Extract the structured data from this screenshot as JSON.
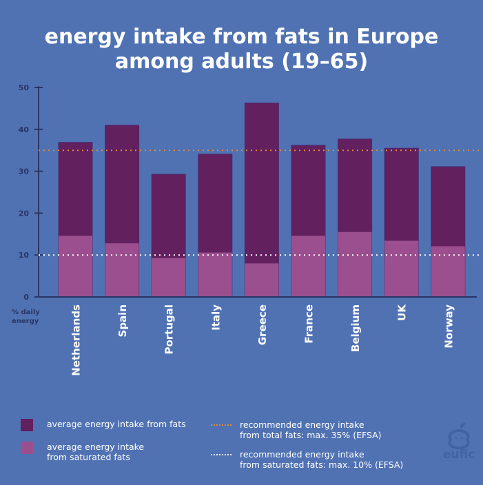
{
  "title": [
    "energy intake from fats in Europe",
    "among adults (19–65)"
  ],
  "colors": {
    "background": "#5072b3",
    "total": "#62205f",
    "saturated": "#9b4f8e",
    "axis": "#2a3566",
    "efsa_total_line": "#e6892f",
    "efsa_sat_line": "#ffffff"
  },
  "chart_data": {
    "type": "bar",
    "stacked": "overlay",
    "title": "energy intake from fats in Europe among adults (19–65)",
    "ylabel": "% daily energy",
    "ylim": [
      0,
      50
    ],
    "yticks": [
      0,
      10,
      20,
      30,
      40,
      50
    ],
    "grid": false,
    "categories": [
      "Netherlands",
      "Spain",
      "Portugal",
      "Italy",
      "Greece",
      "France",
      "Belgium",
      "UK",
      "Norway"
    ],
    "series": [
      {
        "name": "average energy intake from fats",
        "values": [
          36.9,
          41.0,
          29.3,
          34.1,
          46.3,
          36.2,
          37.7,
          35.5,
          31.1
        ]
      },
      {
        "name": "average energy intake from saturated fats",
        "values": [
          14.6,
          12.8,
          9.3,
          10.6,
          8.0,
          14.6,
          15.5,
          13.4,
          12.1
        ]
      }
    ],
    "reference_lines": [
      {
        "name": "recommended energy intake from total fats: max. 35% (EFSA)",
        "value": 35
      },
      {
        "name": "recommended energy intake from saturated fats: max. 10% (EFSA)",
        "value": 10
      }
    ]
  },
  "legend": {
    "total": "average energy intake from fats",
    "saturated": [
      "average energy intake",
      "from saturated fats"
    ],
    "efsa_total": [
      "recommended energy intake",
      "from total fats: max. 35% (EFSA)"
    ],
    "efsa_sat": [
      "recommended energy intake",
      "from saturated fats: max. 10% (EFSA)"
    ]
  },
  "ylabel": [
    "% daily",
    "energy"
  ],
  "logo": "eufic"
}
